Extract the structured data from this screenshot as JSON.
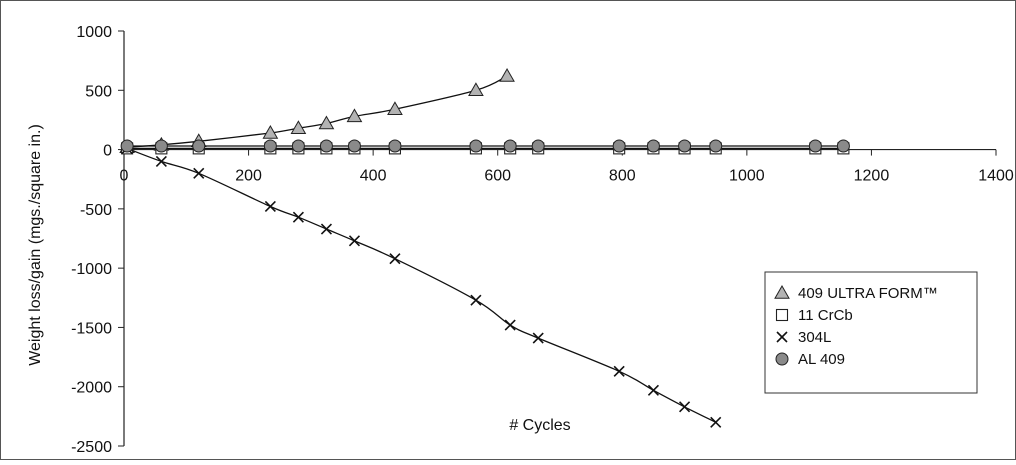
{
  "chart_data": {
    "type": "line",
    "title": "",
    "xlabel": "# Cycles",
    "ylabel": "Weight loss/gain (mgs./square in.)",
    "xlim": [
      0,
      1400
    ],
    "ylim": [
      -2500,
      1000
    ],
    "xticks": [
      0,
      200,
      400,
      600,
      800,
      1000,
      1200,
      1400
    ],
    "yticks": [
      1000,
      500,
      0,
      -500,
      -1000,
      -1500,
      -2000,
      -2500
    ],
    "grid": false,
    "legend": {
      "position": "right"
    },
    "series": [
      {
        "name": "409 ULTRA FORM™",
        "marker": "triangle",
        "points": [
          [
            5,
            20
          ],
          [
            60,
            40
          ],
          [
            120,
            70
          ],
          [
            235,
            140
          ],
          [
            280,
            180
          ],
          [
            325,
            220
          ],
          [
            370,
            280
          ],
          [
            435,
            340
          ],
          [
            565,
            500
          ],
          [
            615,
            620
          ]
        ]
      },
      {
        "name": "11 CrCb",
        "marker": "square",
        "points": [
          [
            5,
            10
          ],
          [
            60,
            10
          ],
          [
            120,
            10
          ],
          [
            235,
            10
          ],
          [
            280,
            10
          ],
          [
            325,
            10
          ],
          [
            370,
            10
          ],
          [
            435,
            10
          ],
          [
            565,
            10
          ],
          [
            620,
            10
          ],
          [
            665,
            10
          ],
          [
            795,
            10
          ],
          [
            850,
            10
          ],
          [
            900,
            10
          ],
          [
            950,
            10
          ],
          [
            1110,
            10
          ],
          [
            1155,
            10
          ]
        ]
      },
      {
        "name": "304L",
        "marker": "x",
        "points": [
          [
            5,
            10
          ],
          [
            60,
            -100
          ],
          [
            120,
            -200
          ],
          [
            235,
            -480
          ],
          [
            280,
            -570
          ],
          [
            325,
            -670
          ],
          [
            370,
            -770
          ],
          [
            435,
            -920
          ],
          [
            565,
            -1270
          ],
          [
            620,
            -1480
          ],
          [
            665,
            -1590
          ],
          [
            795,
            -1870
          ],
          [
            850,
            -2030
          ],
          [
            900,
            -2170
          ],
          [
            950,
            -2300
          ]
        ]
      },
      {
        "name": "AL 409",
        "marker": "circle",
        "points": [
          [
            5,
            30
          ],
          [
            60,
            30
          ],
          [
            120,
            30
          ],
          [
            235,
            30
          ],
          [
            280,
            30
          ],
          [
            325,
            30
          ],
          [
            370,
            30
          ],
          [
            435,
            30
          ],
          [
            565,
            30
          ],
          [
            620,
            30
          ],
          [
            665,
            30
          ],
          [
            795,
            30
          ],
          [
            850,
            30
          ],
          [
            900,
            30
          ],
          [
            950,
            30
          ],
          [
            1110,
            30
          ],
          [
            1155,
            30
          ]
        ]
      }
    ]
  }
}
